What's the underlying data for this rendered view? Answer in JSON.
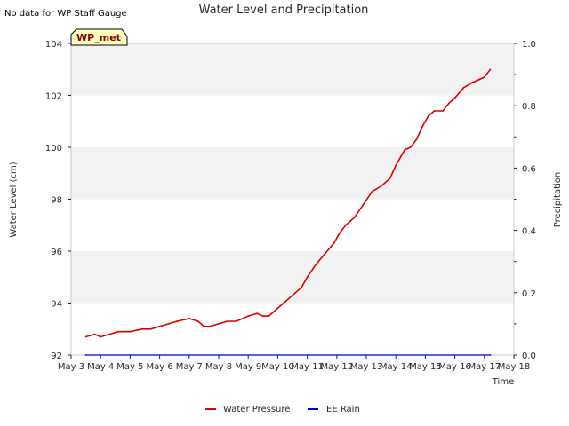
{
  "chart_data": {
    "type": "line",
    "title": "Water Level and Precipitation",
    "note": "No data for WP Staff Gauge",
    "badge": "WP_met",
    "xlabel": "Time",
    "ylabel_left": "Water Level (cm)",
    "ylabel_right": "Precipitation",
    "xlim": [
      0,
      15
    ],
    "ylim_left": [
      92,
      104
    ],
    "ylim_right": [
      0.0,
      1.0
    ],
    "x_ticks": [
      {
        "v": 0,
        "label": "May 3"
      },
      {
        "v": 1,
        "label": "May 4"
      },
      {
        "v": 2,
        "label": "May 5"
      },
      {
        "v": 3,
        "label": "May 6"
      },
      {
        "v": 4,
        "label": "May 7"
      },
      {
        "v": 5,
        "label": "May 8"
      },
      {
        "v": 6,
        "label": "May 9"
      },
      {
        "v": 7,
        "label": "May 10"
      },
      {
        "v": 8,
        "label": "May 11"
      },
      {
        "v": 9,
        "label": "May 12"
      },
      {
        "v": 10,
        "label": "May 13"
      },
      {
        "v": 11,
        "label": "May 14"
      },
      {
        "v": 12,
        "label": "May 15"
      },
      {
        "v": 13,
        "label": "May 16"
      },
      {
        "v": 14,
        "label": "May 17"
      },
      {
        "v": 15,
        "label": "May 18"
      }
    ],
    "y_ticks_left": [
      92,
      94,
      96,
      98,
      100,
      102,
      104
    ],
    "y_ticks_right": [
      "0.0",
      "0.2",
      "0.4",
      "0.6",
      "0.8",
      "1.0"
    ],
    "grid": "horizontal bands",
    "legend_position": "bottom-center",
    "colors": {
      "water_pressure": "#dd0000",
      "ee_rain": "#0000cc",
      "band": "#f2f2f2"
    },
    "series": [
      {
        "name": "Water Pressure",
        "axis": "left",
        "x": [
          0.5,
          0.8,
          1.0,
          1.3,
          1.6,
          2.0,
          2.4,
          2.7,
          3.0,
          3.3,
          3.6,
          4.0,
          4.3,
          4.5,
          4.7,
          5.0,
          5.3,
          5.6,
          6.0,
          6.3,
          6.5,
          6.7,
          7.0,
          7.2,
          7.5,
          7.8,
          8.0,
          8.3,
          8.6,
          8.9,
          9.1,
          9.3,
          9.6,
          9.9,
          10.2,
          10.5,
          10.8,
          11.0,
          11.3,
          11.5,
          11.7,
          11.9,
          12.1,
          12.3,
          12.6,
          12.8,
          13.0,
          13.3,
          13.6,
          13.8,
          14.0,
          14.2
        ],
        "values": [
          92.7,
          92.8,
          92.7,
          92.8,
          92.9,
          92.9,
          93.0,
          93.0,
          93.1,
          93.2,
          93.3,
          93.4,
          93.3,
          93.1,
          93.1,
          93.2,
          93.3,
          93.3,
          93.5,
          93.6,
          93.5,
          93.5,
          93.8,
          94.0,
          94.3,
          94.6,
          95.0,
          95.5,
          95.9,
          96.3,
          96.7,
          97.0,
          97.3,
          97.8,
          98.3,
          98.5,
          98.8,
          99.3,
          99.9,
          100.0,
          100.3,
          100.8,
          101.2,
          101.4,
          101.4,
          101.7,
          101.9,
          102.3,
          102.5,
          102.6,
          102.7,
          103.0
        ]
      },
      {
        "name": "EE Rain",
        "axis": "right",
        "x": [
          0.5,
          14.2
        ],
        "values": [
          0.0,
          0.0
        ]
      }
    ]
  }
}
